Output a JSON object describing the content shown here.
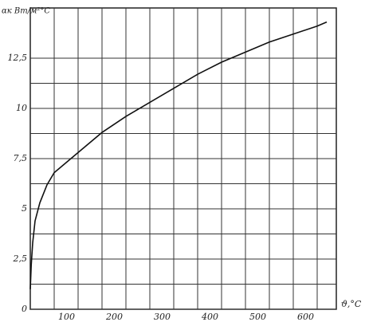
{
  "chart_data": {
    "type": "line",
    "x_label": "ϑ,°C",
    "y_label": "αк Вт/м²°С",
    "x": [
      0,
      2,
      5,
      10,
      20,
      35,
      50,
      75,
      100,
      150,
      200,
      250,
      300,
      350,
      400,
      450,
      500,
      550,
      600,
      620
    ],
    "series": [
      {
        "color": "#111",
        "values": [
          1.0,
          2.2,
          3.3,
          4.4,
          5.3,
          6.2,
          6.8,
          7.3,
          7.8,
          8.8,
          9.6,
          10.3,
          11.0,
          11.7,
          12.3,
          12.8,
          13.3,
          13.7,
          14.1,
          14.3
        ]
      }
    ],
    "xlim": [
      0,
      640
    ],
    "ylim": [
      0,
      15
    ],
    "xticks": [
      100,
      200,
      300,
      400,
      500,
      600
    ],
    "yticks": [
      0,
      {
        "value": 2.5,
        "label": "2,5"
      },
      5,
      {
        "value": 7.5,
        "label": "7,5"
      },
      10,
      {
        "value": 12.5,
        "label": "12,5"
      }
    ],
    "grid": true
  }
}
